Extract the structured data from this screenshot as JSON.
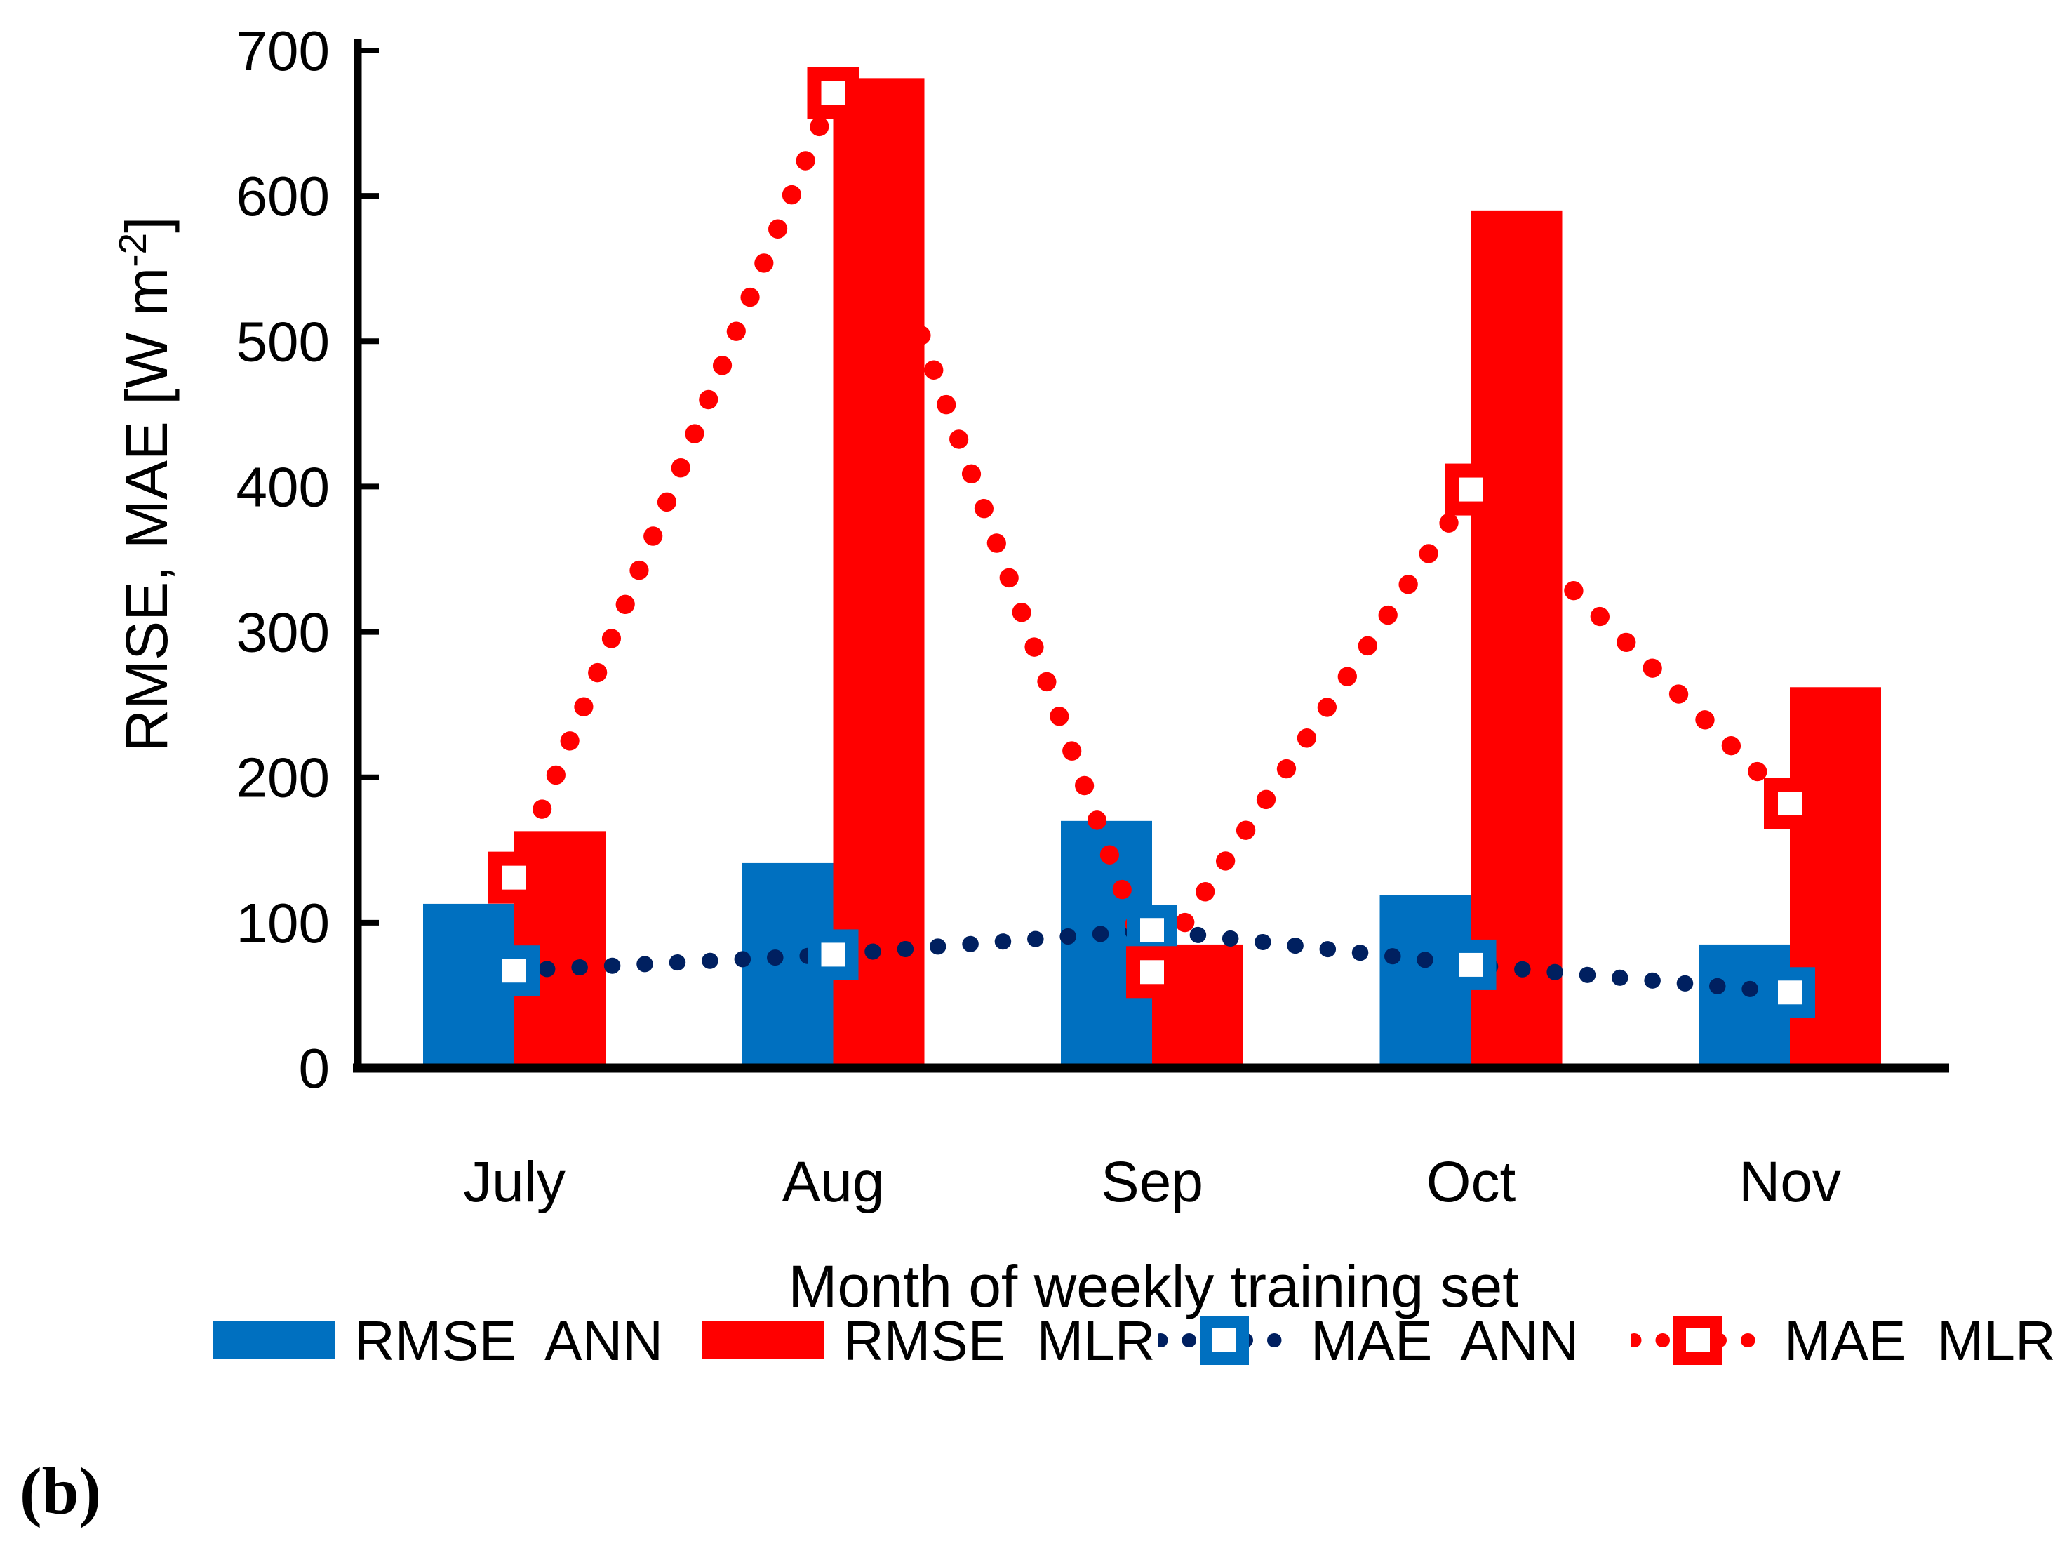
{
  "figure_label": "(b)",
  "chart_data": {
    "type": "bar+line-combo",
    "categories": [
      "July",
      "Aug",
      "Sep",
      "Oct",
      "Nov"
    ],
    "series": [
      {
        "name": "RMSE  ANN",
        "type": "bar",
        "color": "#0070C0",
        "marker": "none",
        "values": [
          113,
          141,
          170,
          119,
          85
        ]
      },
      {
        "name": "RMSE  MLR",
        "type": "bar",
        "color": "#FF0000",
        "marker": "none",
        "values": [
          163,
          681,
          85,
          590,
          262
        ]
      },
      {
        "name": "MAE  ANN",
        "type": "line",
        "color": "#002060",
        "line_style": "dotted",
        "marker": "open-square",
        "marker_fill": "#0070C0",
        "values": [
          67,
          78,
          95,
          71,
          52
        ]
      },
      {
        "name": "MAE  MLR",
        "type": "line",
        "color": "#FF0000",
        "line_style": "dotted",
        "marker": "open-square",
        "marker_fill": "#FF0000",
        "values": [
          131,
          671,
          66,
          398,
          182
        ]
      }
    ],
    "title": "",
    "xlabel": "Month of weekly training set",
    "ylabel": "RMSE, MAE [W m⁻²]",
    "ylabel_parts": {
      "prefix": "RMSE, MAE [W m",
      "sup": "-2",
      "suffix": "]"
    },
    "ylim": [
      0,
      700
    ],
    "ytick_step": 100,
    "ytick_labels": [
      "0",
      "100",
      "200",
      "300",
      "400",
      "500",
      "600",
      "700"
    ],
    "grid": false,
    "legend_position": "bottom",
    "axis_color": "#000000",
    "text_color": "#000000"
  }
}
